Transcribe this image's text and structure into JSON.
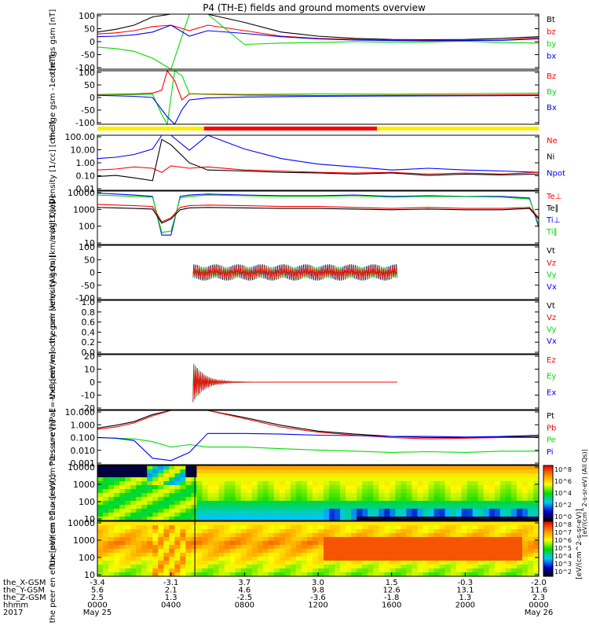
{
  "title": "P4 (TH-E) fields and ground moments overview",
  "colors": {
    "black": "#000000",
    "red": "#ff0000",
    "green": "#00dd00",
    "blue": "#0000ff"
  },
  "chart_data": [
    {
      "type": "line",
      "ylabel": "the fgs gsm [nT]",
      "ylim": [
        -100,
        100
      ],
      "yticks": [
        "100",
        "50",
        "0",
        "-50",
        "-100"
      ],
      "legend": [
        {
          "label": "Bt",
          "color": "#000000"
        },
        {
          "label": "bz",
          "color": "#ff0000"
        },
        {
          "label": "by",
          "color": "#00dd00"
        },
        {
          "label": "bx",
          "color": "#0000ff"
        }
      ],
      "series": [
        {
          "name": "Bt",
          "x": [
            0,
            1,
            2,
            3,
            4,
            5,
            6,
            8,
            10,
            12,
            14,
            16,
            18,
            20,
            22,
            24
          ],
          "y": [
            35,
            45,
            60,
            90,
            100,
            100,
            100,
            70,
            35,
            20,
            12,
            8,
            7,
            8,
            12,
            18
          ]
        },
        {
          "name": "bz",
          "x": [
            0,
            1,
            2,
            3,
            4,
            5,
            6,
            8,
            10,
            12,
            14,
            16,
            18,
            20,
            22,
            24
          ],
          "y": [
            28,
            32,
            40,
            55,
            60,
            40,
            60,
            40,
            20,
            12,
            8,
            5,
            4,
            5,
            6,
            14
          ]
        },
        {
          "name": "by",
          "x": [
            0,
            1,
            2,
            3,
            4,
            5,
            6,
            8,
            10,
            12,
            14,
            16,
            18,
            20,
            22,
            24
          ],
          "y": [
            -20,
            -25,
            -35,
            -60,
            -100,
            100,
            100,
            -10,
            -5,
            -3,
            0,
            -2,
            -1,
            2,
            -3,
            -5
          ]
        },
        {
          "name": "bx",
          "x": [
            0,
            1,
            2,
            3,
            4,
            5,
            6,
            8,
            10,
            12,
            14,
            16,
            18,
            20,
            22,
            24
          ],
          "y": [
            18,
            20,
            25,
            35,
            60,
            20,
            40,
            30,
            18,
            10,
            6,
            4,
            3,
            4,
            5,
            10
          ]
        }
      ]
    },
    {
      "type": "line",
      "ylabel": "the fge gsm -1eo [nT]",
      "ylim": [
        -120,
        100
      ],
      "yticks": [
        "100",
        "50",
        "0",
        "-50",
        "-100"
      ],
      "legend": [
        {
          "label": "Bz",
          "color": "#ff0000"
        },
        {
          "label": "By",
          "color": "#00dd00"
        },
        {
          "label": "Bx",
          "color": "#0000ff"
        }
      ],
      "series": [
        {
          "name": "Bz",
          "x": [
            0,
            2,
            3,
            3.5,
            3.8,
            4.2,
            4.6,
            5,
            6,
            8,
            12,
            16,
            20,
            24
          ],
          "y": [
            2,
            5,
            8,
            20,
            100,
            60,
            -20,
            5,
            3,
            0,
            -2,
            -1,
            0,
            2
          ]
        },
        {
          "name": "By",
          "x": [
            0,
            2,
            3,
            3.5,
            3.8,
            4.2,
            4.6,
            5,
            6,
            8,
            12,
            16,
            20,
            24
          ],
          "y": [
            0,
            2,
            4,
            -80,
            -120,
            100,
            80,
            6,
            5,
            3,
            5,
            4,
            6,
            8
          ]
        },
        {
          "name": "Bx",
          "x": [
            0,
            2,
            3,
            3.5,
            3.8,
            4.2,
            4.6,
            5,
            6,
            8,
            12,
            16,
            20,
            24
          ],
          "y": [
            -1,
            -5,
            -10,
            -60,
            -90,
            -120,
            -60,
            -20,
            -12,
            -8,
            -5,
            -4,
            -3,
            -2
          ]
        }
      ]
    },
    {
      "type": "line",
      "ylabel": "Density [1/cc] [cm-3]",
      "ylim": [
        0.01,
        100
      ],
      "yscale": "log",
      "yticks": [
        "100.00",
        "10.00",
        "1.00",
        "0.10",
        "0.01"
      ],
      "legend": [
        {
          "label": "Ne",
          "color": "#ff0000"
        },
        {
          "label": "Ni",
          "color": "#000000"
        },
        {
          "label": "Npot",
          "color": "#0000ff"
        }
      ],
      "series": [
        {
          "name": "Npot",
          "x": [
            0,
            1,
            2,
            3,
            3.5,
            4,
            5,
            6,
            8,
            10,
            12,
            14,
            16,
            18,
            20,
            22,
            24
          ],
          "y": [
            2,
            2.5,
            4,
            10,
            100,
            100,
            8,
            100,
            10,
            2,
            0.8,
            0.5,
            0.3,
            0.4,
            0.3,
            0.25,
            0.2
          ]
        },
        {
          "name": "Ne",
          "x": [
            0,
            1,
            2,
            3,
            3.5,
            4,
            5,
            6,
            8,
            10,
            12,
            14,
            16,
            18,
            20,
            22,
            24
          ],
          "y": [
            0.3,
            0.35,
            0.5,
            0.4,
            0.2,
            0.6,
            0.4,
            0.5,
            0.3,
            0.25,
            0.2,
            0.18,
            0.2,
            0.15,
            0.18,
            0.15,
            0.2
          ]
        },
        {
          "name": "Ni",
          "x": [
            0,
            1,
            2,
            3,
            3.5,
            4,
            5,
            6,
            8,
            10,
            12,
            14,
            16,
            18,
            20,
            22,
            24
          ],
          "y": [
            0.1,
            0.12,
            0.08,
            0.05,
            50,
            20,
            1,
            0.3,
            0.25,
            0.2,
            0.18,
            0.15,
            0.18,
            0.12,
            0.15,
            0.13,
            0.15
          ]
        }
      ]
    },
    {
      "type": "line",
      "ylabel": "magt3 [eV]",
      "ylim": [
        1,
        10000
      ],
      "yscale": "log",
      "yticks": [
        "10000",
        "1000",
        "100",
        "10"
      ],
      "legend": [
        {
          "label": "Te⊥",
          "color": "#ff0000"
        },
        {
          "label": "Te∥",
          "color": "#000000"
        },
        {
          "label": "Ti⊥",
          "color": "#0000ff"
        },
        {
          "label": "Ti∥",
          "color": "#00dd00"
        }
      ],
      "series": [
        {
          "name": "Ti⊥",
          "x": [
            0,
            1,
            2,
            3,
            3.5,
            4,
            4.5,
            5,
            6,
            8,
            10,
            12,
            14,
            16,
            18,
            20,
            22,
            23.5,
            24
          ],
          "y": [
            7000,
            6000,
            5000,
            4000,
            5,
            5,
            4000,
            5000,
            6000,
            5000,
            4500,
            4500,
            5000,
            4000,
            4500,
            4000,
            4000,
            3000,
            20
          ]
        },
        {
          "name": "Ti∥",
          "x": [
            0,
            1,
            2,
            3,
            3.5,
            4,
            4.5,
            5,
            6,
            8,
            10,
            12,
            14,
            16,
            18,
            20,
            22,
            23.5,
            24
          ],
          "y": [
            5000,
            4500,
            4000,
            3500,
            8,
            10,
            3000,
            4000,
            5000,
            4500,
            4000,
            4000,
            4500,
            3500,
            4000,
            3800,
            3500,
            2500,
            30
          ]
        },
        {
          "name": "Te⊥",
          "x": [
            0,
            1,
            2,
            3,
            3.5,
            4,
            4.5,
            5,
            6,
            8,
            10,
            12,
            14,
            16,
            18,
            20,
            22,
            23.5,
            24
          ],
          "y": [
            1000,
            900,
            800,
            700,
            50,
            100,
            600,
            800,
            900,
            800,
            700,
            700,
            600,
            500,
            600,
            500,
            500,
            600,
            100
          ]
        },
        {
          "name": "Te∥",
          "x": [
            0,
            1,
            2,
            3,
            3.5,
            4,
            4.5,
            5,
            6,
            8,
            10,
            12,
            14,
            16,
            18,
            20,
            22,
            23.5,
            24
          ],
          "y": [
            600,
            550,
            500,
            450,
            40,
            80,
            400,
            550,
            600,
            550,
            500,
            500,
            450,
            400,
            450,
            400,
            400,
            500,
            80
          ]
        }
      ]
    },
    {
      "type": "line",
      "ylabel": "the peir velocity gsm [km/s (All Qs)]",
      "ylim": [
        -100,
        100
      ],
      "yticks": [
        "100",
        "50",
        "0",
        "-50",
        "-100"
      ],
      "legend": [
        {
          "label": "Vt",
          "color": "#000000"
        },
        {
          "label": "Vz",
          "color": "#ff0000"
        },
        {
          "label": "Vy",
          "color": "#00dd00"
        },
        {
          "label": "Vx",
          "color": "#0000ff"
        }
      ],
      "noise_band": {
        "x_start": 5.2,
        "x_end": 16.3,
        "amplitude": 30
      }
    },
    {
      "type": "line",
      "ylabel": "the peer velocity gsm [km/s (All Qs)]",
      "ylim": [
        0,
        1
      ],
      "yticks": [
        "1.0",
        "0.8",
        "0.6",
        "0.4",
        "0.2",
        "0.0"
      ],
      "legend": [
        {
          "label": "Vt",
          "color": "#000000"
        },
        {
          "label": "Vz",
          "color": "#ff0000"
        },
        {
          "label": "Vy",
          "color": "#00dd00"
        },
        {
          "label": "Vx",
          "color": "#0000ff"
        }
      ]
    },
    {
      "type": "line",
      "ylabel": "E=-VxB [mV/m]",
      "ylim": [
        -20,
        20
      ],
      "yticks": [
        "20",
        "10",
        "0",
        "-10",
        "-20"
      ],
      "legend": [
        {
          "label": "Ez",
          "color": "#ff0000"
        },
        {
          "label": "Ey",
          "color": "#00dd00"
        },
        {
          "label": "Ex",
          "color": "#0000ff"
        }
      ],
      "damped": {
        "x_start": 5.2,
        "x_end": 16.3,
        "amplitude": 15
      }
    },
    {
      "type": "line",
      "ylabel": "Pressure [nPa]",
      "ylim": [
        0.001,
        10
      ],
      "yscale": "log",
      "yticks": [
        "10.000",
        "1.000",
        "0.100",
        "0.010",
        "0.001"
      ],
      "legend": [
        {
          "label": "Pt",
          "color": "#000000"
        },
        {
          "label": "Pb",
          "color": "#ff0000"
        },
        {
          "label": "Pe",
          "color": "#00dd00"
        },
        {
          "label": "Pi",
          "color": "#0000ff"
        }
      ],
      "series": [
        {
          "name": "Pt",
          "x": [
            0,
            1,
            2,
            3,
            4,
            5,
            6,
            8,
            10,
            12,
            14,
            16,
            18,
            20,
            22,
            24
          ],
          "y": [
            0.5,
            0.8,
            1.5,
            5,
            10,
            10,
            10,
            3,
            0.8,
            0.3,
            0.18,
            0.12,
            0.1,
            0.1,
            0.11,
            0.12
          ]
        },
        {
          "name": "Pb",
          "x": [
            0,
            1,
            2,
            3,
            4,
            5,
            6,
            8,
            10,
            12,
            14,
            16,
            18,
            20,
            22,
            24
          ],
          "y": [
            0.4,
            0.6,
            1.2,
            4,
            10,
            10,
            10,
            2.5,
            0.6,
            0.25,
            0.15,
            0.1,
            0.08,
            0.09,
            0.1,
            0.1
          ]
        },
        {
          "name": "Pe",
          "x": [
            0,
            1,
            2,
            3,
            4,
            5,
            6,
            8,
            10,
            12,
            14,
            16,
            18,
            20,
            22,
            24
          ],
          "y": [
            0.1,
            0.09,
            0.08,
            0.05,
            0.02,
            0.03,
            0.02,
            0.02,
            0.015,
            0.012,
            0.01,
            0.008,
            0.009,
            0.008,
            0.01,
            0.01
          ]
        },
        {
          "name": "Pi",
          "x": [
            0,
            1,
            2,
            3,
            4,
            5,
            6,
            8,
            10,
            12,
            14,
            16,
            18,
            20,
            22,
            24
          ],
          "y": [
            0.1,
            0.09,
            0.06,
            0.003,
            0.002,
            0.008,
            0.2,
            0.2,
            0.18,
            0.15,
            0.14,
            0.12,
            0.12,
            0.11,
            0.12,
            0.15
          ]
        }
      ]
    },
    {
      "type": "heatmap",
      "ylabel": "the peir en eflux [eV/(cm^2-s-sr-eV)]",
      "yticks": [
        "10000",
        "1000",
        "100",
        "10"
      ]
    },
    {
      "type": "heatmap",
      "ylabel": "the peer en eflux [eV/(cm^2-s-sr-eV)]",
      "yticks": [
        "10000",
        "1000",
        "100",
        "10"
      ]
    }
  ],
  "colorbar": {
    "label": "[eV/(cm^2-s-sr-eV)]",
    "label2": "[eV/(cm^2-s-sr-eV) (All Qs)]",
    "ticks_top": [
      "10^8",
      "10^6",
      "10^4",
      "10^2",
      "10^0"
    ],
    "ticks_bottom": [
      "10^8",
      "10^7",
      "10^6",
      "10^5",
      "10^4",
      "10^3",
      "10^2"
    ]
  },
  "xaxis": {
    "rows": [
      {
        "label": "the_X-GSM",
        "values": [
          "-3.4",
          "-3.1",
          "3.7",
          "3.0",
          "1.5",
          "-0.3",
          "-2.0"
        ]
      },
      {
        "label": "the_Y-GSM",
        "values": [
          "5.6",
          "2.1",
          "4.6",
          "9.8",
          "12.6",
          "13.1",
          "11.6"
        ]
      },
      {
        "label": "the_Z-GSM",
        "values": [
          "2.5",
          "1.3",
          "-2.5",
          "-3.6",
          "-1.8",
          "1.3",
          "2.3"
        ]
      },
      {
        "label": "hhmm",
        "values": [
          "0000",
          "0400",
          "0800",
          "1200",
          "1600",
          "2000",
          "0000"
        ]
      },
      {
        "label": "2017",
        "values": [
          "May 25",
          "",
          "",
          "",
          "",
          "",
          "May 26"
        ]
      }
    ]
  }
}
